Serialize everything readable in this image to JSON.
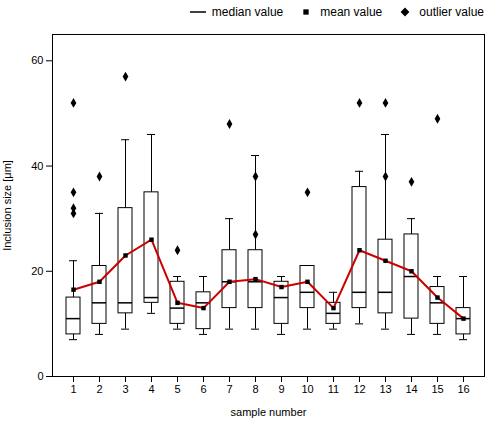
{
  "chart_data": {
    "type": "box",
    "xlabel": "sample number",
    "ylabel": "Inclusion size [μm]",
    "categories": [
      "1",
      "2",
      "3",
      "4",
      "5",
      "6",
      "7",
      "8",
      "9",
      "10",
      "11",
      "12",
      "13",
      "14",
      "15",
      "16"
    ],
    "ylim": [
      0,
      65
    ],
    "yticks": [
      0,
      20,
      40,
      60
    ],
    "grid": false,
    "legend": "upper right",
    "series": [
      {
        "name": "median value",
        "type": "box",
        "color": "black",
        "values": [
          {
            "median": 11,
            "q1": 8,
            "q3": 15,
            "whisker_low": 7,
            "whisker_high": 22
          },
          {
            "median": 14,
            "q1": 10,
            "q3": 21,
            "whisker_low": 8,
            "whisker_high": 31
          },
          {
            "median": 14,
            "q1": 12,
            "q3": 32,
            "whisker_low": 9,
            "whisker_high": 45
          },
          {
            "median": 15,
            "q1": 14,
            "q3": 35,
            "whisker_low": 12,
            "whisker_high": 46
          },
          {
            "median": 13,
            "q1": 10,
            "q3": 18,
            "whisker_low": 9,
            "whisker_high": 19
          },
          {
            "median": 14,
            "q1": 9,
            "q3": 16,
            "whisker_low": 8,
            "whisker_high": 19
          },
          {
            "median": 18,
            "q1": 13,
            "q3": 24,
            "whisker_low": 9,
            "whisker_high": 30
          },
          {
            "median": 18,
            "q1": 13,
            "q3": 24,
            "whisker_low": 9,
            "whisker_high": 42
          },
          {
            "median": 15,
            "q1": 10,
            "q3": 18,
            "whisker_low": 8,
            "whisker_high": 19
          },
          {
            "median": 16,
            "q1": 13,
            "q3": 21,
            "whisker_low": 9,
            "whisker_high": 21
          },
          {
            "median": 12,
            "q1": 10,
            "q3": 14,
            "whisker_low": 9,
            "whisker_high": 16
          },
          {
            "median": 16,
            "q1": 13,
            "q3": 36,
            "whisker_low": 10,
            "whisker_high": 39
          },
          {
            "median": 16,
            "q1": 12,
            "q3": 26,
            "whisker_low": 9,
            "whisker_high": 46
          },
          {
            "median": 19,
            "q1": 11,
            "q3": 27,
            "whisker_low": 8,
            "whisker_high": 30
          },
          {
            "median": 14,
            "q1": 10,
            "q3": 17,
            "whisker_low": 8,
            "whisker_high": 19
          },
          {
            "median": 11,
            "q1": 8,
            "q3": 13,
            "whisker_low": 7,
            "whisker_high": 19
          }
        ]
      },
      {
        "name": "mean value",
        "type": "line",
        "color": "#cc0000",
        "marker": "square",
        "values": [
          16.5,
          18,
          23,
          26,
          14,
          13,
          18,
          18.5,
          17,
          18,
          13,
          24,
          22,
          20,
          15,
          11
        ]
      },
      {
        "name": "outlier value",
        "type": "scatter",
        "marker": "diamond",
        "values": [
          [
            35,
            32,
            31,
            52
          ],
          [
            38
          ],
          [
            57
          ],
          [],
          [
            24
          ],
          [],
          [
            48
          ],
          [
            38,
            27
          ],
          [],
          [
            35
          ],
          [],
          [
            52
          ],
          [
            52,
            38
          ],
          [
            37
          ],
          [
            49
          ],
          []
        ]
      }
    ]
  }
}
